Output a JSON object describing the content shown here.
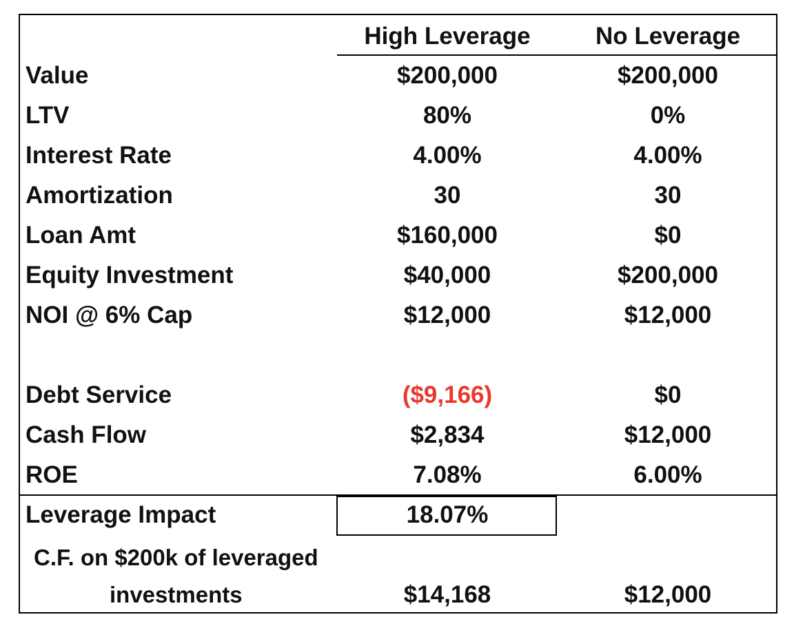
{
  "headers": [
    "High Leverage",
    "No Leverage"
  ],
  "rows": [
    {
      "label": "Value",
      "high": "$200,000",
      "none": "$200,000"
    },
    {
      "label": "LTV",
      "high": "80%",
      "none": "0%"
    },
    {
      "label": "Interest Rate",
      "high": "4.00%",
      "none": "4.00%"
    },
    {
      "label": "Amortization",
      "high": "30",
      "none": "30"
    },
    {
      "label": "Loan Amt",
      "high": "$160,000",
      "none": "$0"
    },
    {
      "label": "Equity Investment",
      "high": "$40,000",
      "none": "$200,000"
    },
    {
      "label": "NOI @ 6% Cap",
      "high": "$12,000",
      "none": "$12,000"
    },
    {
      "label": "Debt Service",
      "high": "($9,166)",
      "none": "$0"
    },
    {
      "label": "Cash Flow",
      "high": "$2,834",
      "none": "$12,000"
    },
    {
      "label": "ROE",
      "high": "7.08%",
      "none": "6.00%"
    }
  ],
  "leverage_impact": {
    "label": "Leverage Impact",
    "value": "18.07%"
  },
  "cf_note": {
    "line1": "C.F. on $200k of leveraged",
    "line2": "investments",
    "high": "$14,168",
    "none": "$12,000"
  },
  "colors": {
    "negative": "#e8392d",
    "text": "#111111",
    "border": "#000000"
  }
}
